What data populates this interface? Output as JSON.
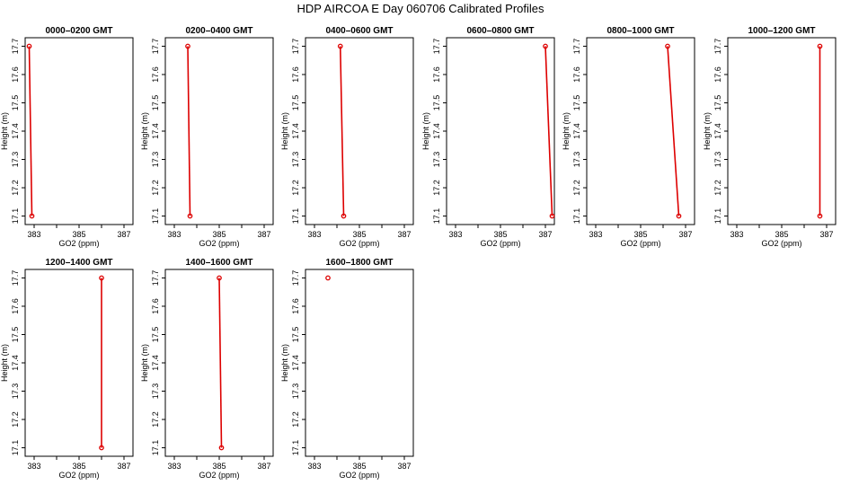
{
  "title": "HDP AIRCOA E  Day 060706  Calibrated Profiles",
  "colors": {
    "profile": "#dd0000",
    "axis": "#000000"
  },
  "chart_data": [
    {
      "type": "line",
      "title": "0000–0200 GMT",
      "xlabel": "GO2 (ppm)",
      "ylabel": "Height (m)",
      "xlim": [
        382.6,
        387.4
      ],
      "ylim": [
        17.07,
        17.73
      ],
      "xticks": [
        "383",
        "385",
        "387"
      ],
      "yticks": [
        "17.1",
        "17.2",
        "17.3",
        "17.4",
        "17.5",
        "17.6",
        "17.7"
      ],
      "series": [
        {
          "x": [
            382.78,
            382.9
          ],
          "y": [
            17.7,
            17.1
          ]
        }
      ]
    },
    {
      "type": "line",
      "title": "0200–0400 GMT",
      "xlabel": "GO2 (ppm)",
      "ylabel": "Height (m)",
      "xlim": [
        382.6,
        387.4
      ],
      "ylim": [
        17.07,
        17.73
      ],
      "xticks": [
        "383",
        "385",
        "387"
      ],
      "yticks": [
        "17.1",
        "17.2",
        "17.3",
        "17.4",
        "17.5",
        "17.6",
        "17.7"
      ],
      "series": [
        {
          "x": [
            383.6,
            383.7
          ],
          "y": [
            17.7,
            17.1
          ]
        }
      ]
    },
    {
      "type": "line",
      "title": "0400–0600 GMT",
      "xlabel": "GO2 (ppm)",
      "ylabel": "Height (m)",
      "xlim": [
        382.6,
        387.4
      ],
      "ylim": [
        17.07,
        17.73
      ],
      "xticks": [
        "383",
        "385",
        "387"
      ],
      "yticks": [
        "17.1",
        "17.2",
        "17.3",
        "17.4",
        "17.5",
        "17.6",
        "17.7"
      ],
      "series": [
        {
          "x": [
            384.15,
            384.3
          ],
          "y": [
            17.7,
            17.1
          ]
        }
      ]
    },
    {
      "type": "line",
      "title": "0600–0800 GMT",
      "xlabel": "GO2 (ppm)",
      "ylabel": "Height (m)",
      "xlim": [
        382.6,
        387.4
      ],
      "ylim": [
        17.07,
        17.73
      ],
      "xticks": [
        "383",
        "385",
        "387"
      ],
      "yticks": [
        "17.1",
        "17.2",
        "17.3",
        "17.4",
        "17.5",
        "17.6",
        "17.7"
      ],
      "series": [
        {
          "x": [
            387.0,
            387.3
          ],
          "y": [
            17.7,
            17.1
          ]
        }
      ]
    },
    {
      "type": "line",
      "title": "0800–1000 GMT",
      "xlabel": "GO2 (ppm)",
      "ylabel": "Height (m)",
      "xlim": [
        382.6,
        387.4
      ],
      "ylim": [
        17.07,
        17.73
      ],
      "xticks": [
        "383",
        "385",
        "387"
      ],
      "yticks": [
        "17.1",
        "17.2",
        "17.3",
        "17.4",
        "17.5",
        "17.6",
        "17.7"
      ],
      "series": [
        {
          "x": [
            386.2,
            386.7
          ],
          "y": [
            17.7,
            17.1
          ]
        }
      ]
    },
    {
      "type": "line",
      "title": "1000–1200 GMT",
      "xlabel": "GO2 (ppm)",
      "ylabel": "Height (m)",
      "xlim": [
        382.6,
        387.4
      ],
      "ylim": [
        17.07,
        17.73
      ],
      "xticks": [
        "383",
        "385",
        "387"
      ],
      "yticks": [
        "17.1",
        "17.2",
        "17.3",
        "17.4",
        "17.5",
        "17.6",
        "17.7"
      ],
      "series": [
        {
          "x": [
            386.7,
            386.7
          ],
          "y": [
            17.7,
            17.1
          ]
        }
      ]
    },
    {
      "type": "line",
      "title": "1200–1400 GMT",
      "xlabel": "GO2 (ppm)",
      "ylabel": "Height (m)",
      "xlim": [
        382.6,
        387.4
      ],
      "ylim": [
        17.07,
        17.73
      ],
      "xticks": [
        "383",
        "385",
        "387"
      ],
      "yticks": [
        "17.1",
        "17.2",
        "17.3",
        "17.4",
        "17.5",
        "17.6",
        "17.7"
      ],
      "series": [
        {
          "x": [
            386.0,
            386.0
          ],
          "y": [
            17.7,
            17.1
          ]
        }
      ]
    },
    {
      "type": "line",
      "title": "1400–1600 GMT",
      "xlabel": "GO2 (ppm)",
      "ylabel": "Height (m)",
      "xlim": [
        382.6,
        387.4
      ],
      "ylim": [
        17.07,
        17.73
      ],
      "xticks": [
        "383",
        "385",
        "387"
      ],
      "yticks": [
        "17.1",
        "17.2",
        "17.3",
        "17.4",
        "17.5",
        "17.6",
        "17.7"
      ],
      "series": [
        {
          "x": [
            385.0,
            385.1
          ],
          "y": [
            17.7,
            17.1
          ]
        }
      ]
    },
    {
      "type": "scatter",
      "title": "1600–1800 GMT",
      "xlabel": "GO2 (ppm)",
      "ylabel": "Height (m)",
      "xlim": [
        382.6,
        387.4
      ],
      "ylim": [
        17.07,
        17.73
      ],
      "xticks": [
        "383",
        "385",
        "387"
      ],
      "yticks": [
        "17.1",
        "17.2",
        "17.3",
        "17.4",
        "17.5",
        "17.6",
        "17.7"
      ],
      "series": [
        {
          "x": [
            383.6
          ],
          "y": [
            17.7
          ]
        }
      ]
    }
  ]
}
